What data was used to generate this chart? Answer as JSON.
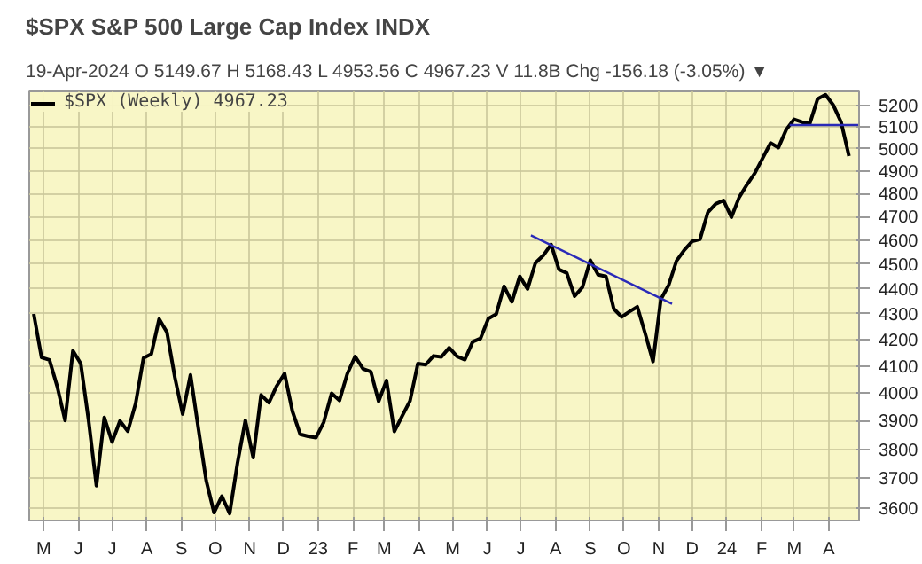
{
  "chart_data": {
    "type": "line",
    "title": "$SPX S&P 500 Large Cap Index INDX",
    "subtitle": "19-Apr-2024   O 5149.67  H 5168.43  L 4953.56  C 4967.23  V 11.8B  Chg -156.18 (-3.05%) ▼",
    "log": "y",
    "grid": true,
    "legend": "top left",
    "line_style": "solid",
    "marker": "none",
    "xlim": [
      "2022-04-18",
      "2024-04-28"
    ],
    "ylim": [
      3560,
      5270
    ],
    "xticks": [
      {
        "value": "2022-05-01",
        "label": "M"
      },
      {
        "value": "2022-06-01",
        "label": "J"
      },
      {
        "value": "2022-07-01",
        "label": "J"
      },
      {
        "value": "2022-08-01",
        "label": "A"
      },
      {
        "value": "2022-09-01",
        "label": "S"
      },
      {
        "value": "2022-10-01",
        "label": "O"
      },
      {
        "value": "2022-11-01",
        "label": "N"
      },
      {
        "value": "2022-12-01",
        "label": "D"
      },
      {
        "value": "2023-01-01",
        "label": "23"
      },
      {
        "value": "2023-02-01",
        "label": "F"
      },
      {
        "value": "2023-03-01",
        "label": "M"
      },
      {
        "value": "2023-04-01",
        "label": "A"
      },
      {
        "value": "2023-05-01",
        "label": "M"
      },
      {
        "value": "2023-06-01",
        "label": "J"
      },
      {
        "value": "2023-07-01",
        "label": "J"
      },
      {
        "value": "2023-08-01",
        "label": "A"
      },
      {
        "value": "2023-09-01",
        "label": "S"
      },
      {
        "value": "2023-10-01",
        "label": "O"
      },
      {
        "value": "2023-11-01",
        "label": "N"
      },
      {
        "value": "2023-12-01",
        "label": "D"
      },
      {
        "value": "2024-01-01",
        "label": "24"
      },
      {
        "value": "2024-02-01",
        "label": "F"
      },
      {
        "value": "2024-03-01",
        "label": "M"
      },
      {
        "value": "2024-04-01",
        "label": "A"
      }
    ],
    "yticks": [
      3600,
      3700,
      3800,
      3900,
      4000,
      4100,
      4200,
      4300,
      4400,
      4500,
      4600,
      4700,
      4800,
      4900,
      5000,
      5100,
      5200
    ],
    "series": [
      {
        "name": "$SPX (Weekly) 4967.23",
        "color": "#000000",
        "x": [
          "2022-04-22",
          "2022-04-29",
          "2022-05-06",
          "2022-05-13",
          "2022-05-20",
          "2022-05-27",
          "2022-06-03",
          "2022-06-10",
          "2022-06-17",
          "2022-06-24",
          "2022-07-01",
          "2022-07-08",
          "2022-07-15",
          "2022-07-22",
          "2022-07-29",
          "2022-08-05",
          "2022-08-12",
          "2022-08-19",
          "2022-08-26",
          "2022-09-02",
          "2022-09-09",
          "2022-09-16",
          "2022-09-23",
          "2022-09-30",
          "2022-10-07",
          "2022-10-14",
          "2022-10-21",
          "2022-10-28",
          "2022-11-04",
          "2022-11-11",
          "2022-11-18",
          "2022-11-25",
          "2022-12-02",
          "2022-12-09",
          "2022-12-16",
          "2022-12-23",
          "2022-12-30",
          "2023-01-06",
          "2023-01-13",
          "2023-01-20",
          "2023-01-27",
          "2023-02-03",
          "2023-02-10",
          "2023-02-17",
          "2023-02-24",
          "2023-03-03",
          "2023-03-10",
          "2023-03-17",
          "2023-03-24",
          "2023-03-31",
          "2023-04-07",
          "2023-04-14",
          "2023-04-21",
          "2023-04-28",
          "2023-05-05",
          "2023-05-12",
          "2023-05-19",
          "2023-05-26",
          "2023-06-02",
          "2023-06-09",
          "2023-06-16",
          "2023-06-23",
          "2023-06-30",
          "2023-07-07",
          "2023-07-14",
          "2023-07-21",
          "2023-07-28",
          "2023-08-04",
          "2023-08-11",
          "2023-08-18",
          "2023-08-25",
          "2023-09-01",
          "2023-09-08",
          "2023-09-15",
          "2023-09-22",
          "2023-09-29",
          "2023-10-06",
          "2023-10-13",
          "2023-10-20",
          "2023-10-27",
          "2023-11-03",
          "2023-11-10",
          "2023-11-17",
          "2023-11-24",
          "2023-12-01",
          "2023-12-08",
          "2023-12-15",
          "2023-12-22",
          "2023-12-29",
          "2024-01-05",
          "2024-01-12",
          "2024-01-19",
          "2024-01-26",
          "2024-02-02",
          "2024-02-09",
          "2024-02-16",
          "2024-02-23",
          "2024-03-01",
          "2024-03-08",
          "2024-03-15",
          "2024-03-22",
          "2024-03-29",
          "2024-04-05",
          "2024-04-12",
          "2024-04-19"
        ],
        "values": [
          4300,
          4132,
          4123,
          4024,
          3901,
          4158,
          4109,
          3901,
          3675,
          3912,
          3825,
          3899,
          3863,
          3962,
          4130,
          4145,
          4280,
          4228,
          4058,
          3924,
          4067,
          3873,
          3693,
          3586,
          3640,
          3583,
          3753,
          3901,
          3771,
          3993,
          3965,
          4026,
          4072,
          3934,
          3852,
          3845,
          3840,
          3895,
          3999,
          3973,
          4071,
          4136,
          4090,
          4079,
          3970,
          4046,
          3862,
          3917,
          3971,
          4109,
          4105,
          4138,
          4134,
          4169,
          4136,
          4124,
          4192,
          4205,
          4282,
          4299,
          4410,
          4348,
          4450,
          4399,
          4505,
          4536,
          4582,
          4478,
          4464,
          4370,
          4406,
          4516,
          4457,
          4450,
          4320,
          4288,
          4309,
          4328,
          4224,
          4117,
          4358,
          4415,
          4514,
          4559,
          4595,
          4604,
          4719,
          4755,
          4770,
          4697,
          4784,
          4840,
          4891,
          4959,
          5027,
          5006,
          5089,
          5137,
          5124,
          5117,
          5234,
          5254,
          5204,
          5123,
          4967
        ]
      },
      {
        "color": "#2a2ab8",
        "x": [
          "2023-07-10",
          "2023-11-13"
        ],
        "values": [
          4620,
          4340
        ]
      },
      {
        "color": "#2a2ab8",
        "x": [
          "2024-02-26",
          "2024-04-28"
        ],
        "values": [
          5110,
          5110
        ]
      }
    ]
  }
}
